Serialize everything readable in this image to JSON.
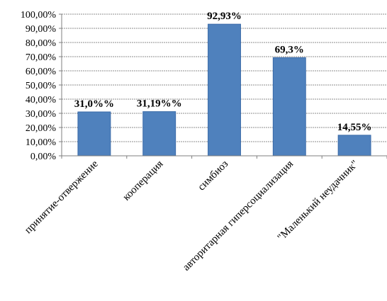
{
  "chart_data": {
    "type": "bar",
    "categories": [
      "принятие-отвержение",
      "кооперация",
      "симбиоз",
      "авторитарная гиперсоциализация",
      "\"Маленький неудачник\""
    ],
    "values": [
      31.0,
      31.19,
      92.93,
      69.3,
      14.55
    ],
    "data_labels": [
      "31,0%%",
      "31,19%%",
      "92,93%",
      "69,3%",
      "14,55%"
    ],
    "ylim": [
      0,
      100
    ],
    "yticks": [
      "0,00%",
      "10,00%",
      "20,00%",
      "30,00%",
      "40,00%",
      "50,00%",
      "60,00%",
      "70,00%",
      "80,00%",
      "90,00%",
      "100,00%"
    ],
    "title": "",
    "xlabel": "",
    "ylabel": "",
    "grid": true,
    "legend": "none",
    "bar_color": "#4f81bd",
    "bar_edge_color": "#3a6aa8"
  }
}
